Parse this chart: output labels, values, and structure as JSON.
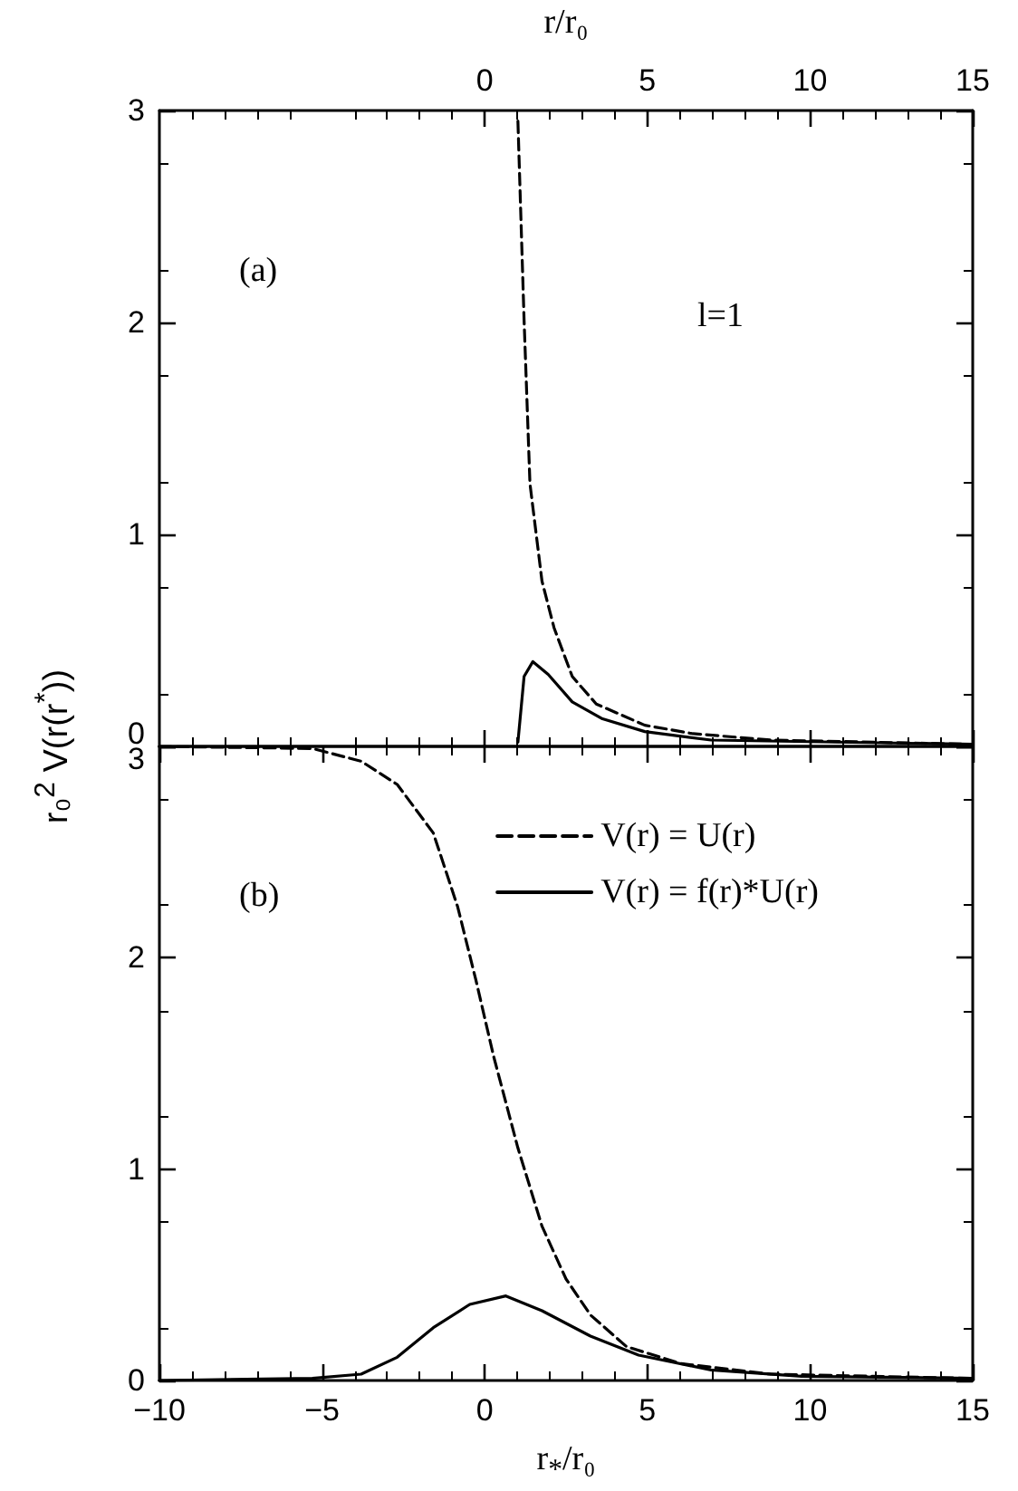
{
  "chart_data": [
    {
      "type": "line",
      "xlabel": "r/r₀",
      "ylabel": "r₀$^{2}$ V(r(r$^{*}$))",
      "annotations": [
        "(a)",
        "l=1"
      ],
      "xlim": [
        -10,
        15
      ],
      "xticks": [
        0,
        5,
        10,
        15
      ],
      "ylim": [
        0,
        3
      ],
      "yticks": [
        0,
        1,
        2,
        3
      ],
      "grid": false,
      "legend": false,
      "marker": "none",
      "series": [
        {
          "color": "#000000",
          "line_style": "dashed",
          "x": [
            1.02,
            1.21,
            1.39,
            1.76,
            2.13,
            2.69,
            3.43,
            4.92,
            6.4,
            8.8,
            15
          ],
          "values": [
            2.95,
            2.01,
            1.24,
            0.78,
            0.56,
            0.33,
            0.2,
            0.1,
            0.06,
            0.03,
            0.01
          ]
        },
        {
          "color": "#000000",
          "line_style": "solid",
          "x": [
            1.02,
            1.21,
            1.48,
            1.95,
            2.69,
            3.62,
            4.92,
            6.96,
            15
          ],
          "values": [
            0.02,
            0.33,
            0.4,
            0.34,
            0.21,
            0.13,
            0.07,
            0.03,
            0.01
          ]
        }
      ]
    },
    {
      "type": "line",
      "xlabel": "r$_{*}$/r₀",
      "annotations": [
        "(b)"
      ],
      "xlim": [
        -10,
        15
      ],
      "xticks": [
        -10,
        -5,
        0,
        5,
        10,
        15
      ],
      "ylim": [
        0,
        3
      ],
      "yticks": [
        0,
        1,
        2,
        3
      ],
      "grid": false,
      "legend": "top right",
      "marker": "none",
      "series": [
        {
          "name": "V(r) = U(r)",
          "color": "#000000",
          "line_style": "dashed",
          "x": [
            -10,
            -5.29,
            -3.8,
            -2.69,
            -1.58,
            -0.83,
            -0.28,
            0.28,
            1.02,
            1.76,
            2.5,
            3.25,
            4.36,
            6.03,
            8.8,
            15
          ],
          "values": [
            3.0,
            2.99,
            2.93,
            2.82,
            2.59,
            2.24,
            1.9,
            1.53,
            1.1,
            0.73,
            0.48,
            0.31,
            0.16,
            0.08,
            0.03,
            0.01
          ]
        },
        {
          "name": "V(r) = f(r)*U(r)",
          "color": "#000000",
          "line_style": "solid",
          "x": [
            -10,
            -5.3,
            -3.8,
            -2.69,
            -1.58,
            -0.46,
            0.65,
            1.76,
            3.25,
            4.73,
            6.96,
            9.74,
            15
          ],
          "values": [
            0,
            0.01,
            0.03,
            0.11,
            0.25,
            0.36,
            0.4,
            0.33,
            0.21,
            0.12,
            0.05,
            0.02,
            0.01
          ]
        }
      ]
    }
  ]
}
